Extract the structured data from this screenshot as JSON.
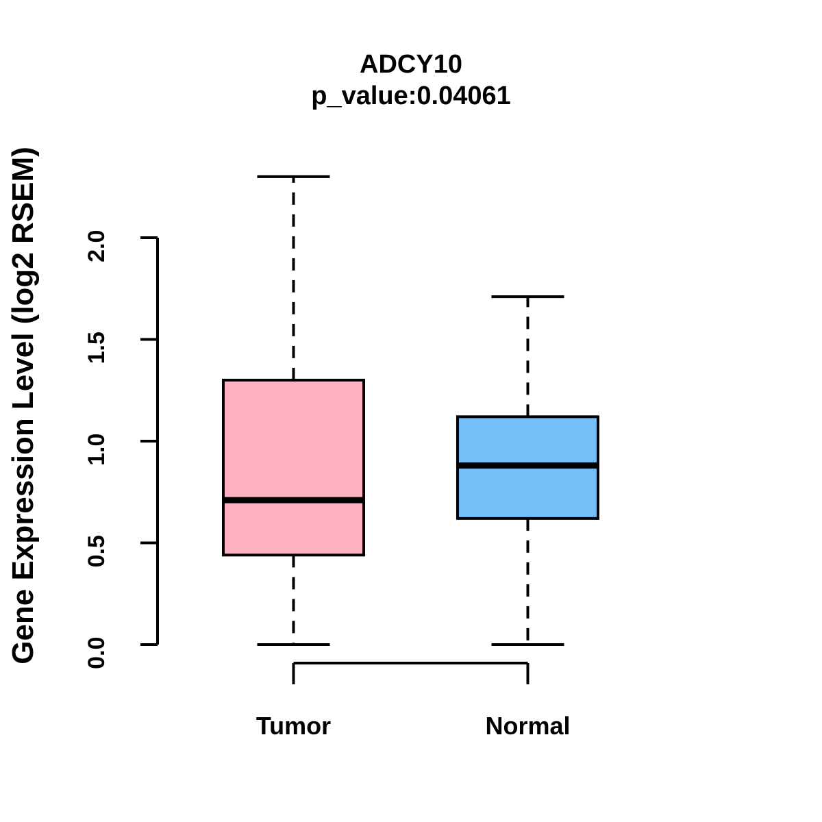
{
  "figure": {
    "title": "ADCY10",
    "subtitle": "p_value:0.04061",
    "ylabel": "Gene Expression Level (log2 RSEM)"
  },
  "chart_data": {
    "type": "boxplot",
    "title": "ADCY10",
    "subtitle": "p_value:0.04061",
    "ylabel": "Gene Expression Level (log2 RSEM)",
    "xlabel": "",
    "categories": [
      "Tumor",
      "Normal"
    ],
    "series": [
      {
        "name": "Tumor",
        "color": "#FFB1C1",
        "lower_whisker": 0.0,
        "q1": 0.44,
        "median": 0.71,
        "q3": 1.3,
        "upper_whisker": 2.3
      },
      {
        "name": "Normal",
        "color": "#74BFF8",
        "lower_whisker": 0.0,
        "q1": 0.62,
        "median": 0.88,
        "q3": 1.12,
        "upper_whisker": 1.71
      }
    ],
    "ylim": [
      0.0,
      2.0
    ],
    "yticks": [
      {
        "label": "0.0",
        "value": 0.0
      },
      {
        "label": "0.5",
        "value": 0.5
      },
      {
        "label": "1.0",
        "value": 1.0
      },
      {
        "label": "1.5",
        "value": 1.5
      },
      {
        "label": "2.0",
        "value": 2.0
      }
    ],
    "grid": false,
    "legend": false,
    "axis_color": "#000000",
    "box_border_color": "#000000",
    "median_color": "#000000",
    "whisker_style": "dashed"
  }
}
